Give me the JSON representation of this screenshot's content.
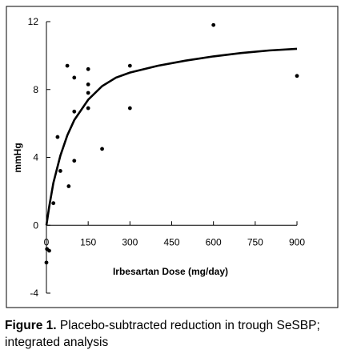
{
  "chart_data": {
    "type": "scatter",
    "xlabel": "Irbesartan Dose (mg/day)",
    "ylabel": "mmHg",
    "xlim": [
      0,
      900
    ],
    "ylim": [
      -4,
      12
    ],
    "x_ticks": [
      0,
      150,
      300,
      450,
      600,
      750,
      900
    ],
    "y_ticks": [
      -4,
      0,
      4,
      8,
      12
    ],
    "x_tick_labels": [
      "0",
      "150",
      "300",
      "450",
      "600",
      "750",
      "900"
    ],
    "y_tick_labels": [
      "-4",
      "0",
      "4",
      "8",
      "12"
    ],
    "grid": false,
    "points": [
      {
        "x": 0,
        "y": -2.2
      },
      {
        "x": 2,
        "y": -1.4
      },
      {
        "x": 10,
        "y": -1.5
      },
      {
        "x": 25,
        "y": 1.3
      },
      {
        "x": 40,
        "y": 5.2
      },
      {
        "x": 50,
        "y": 3.2
      },
      {
        "x": 75,
        "y": 9.4
      },
      {
        "x": 80,
        "y": 2.3
      },
      {
        "x": 100,
        "y": 8.7
      },
      {
        "x": 100,
        "y": 6.7
      },
      {
        "x": 100,
        "y": 3.8
      },
      {
        "x": 150,
        "y": 9.2
      },
      {
        "x": 150,
        "y": 8.3
      },
      {
        "x": 150,
        "y": 7.8
      },
      {
        "x": 150,
        "y": 6.9
      },
      {
        "x": 200,
        "y": 4.5
      },
      {
        "x": 300,
        "y": 9.4
      },
      {
        "x": 300,
        "y": 6.9
      },
      {
        "x": 600,
        "y": 11.8
      },
      {
        "x": 900,
        "y": 8.8
      }
    ],
    "fit_curve": [
      {
        "x": 0,
        "y": 0
      },
      {
        "x": 10,
        "y": 1.1
      },
      {
        "x": 25,
        "y": 2.5
      },
      {
        "x": 50,
        "y": 4.1
      },
      {
        "x": 75,
        "y": 5.3
      },
      {
        "x": 100,
        "y": 6.2
      },
      {
        "x": 150,
        "y": 7.4
      },
      {
        "x": 200,
        "y": 8.2
      },
      {
        "x": 250,
        "y": 8.7
      },
      {
        "x": 300,
        "y": 9.0
      },
      {
        "x": 400,
        "y": 9.4
      },
      {
        "x": 500,
        "y": 9.7
      },
      {
        "x": 600,
        "y": 9.95
      },
      {
        "x": 700,
        "y": 10.15
      },
      {
        "x": 800,
        "y": 10.3
      },
      {
        "x": 900,
        "y": 10.4
      }
    ]
  },
  "caption": {
    "label": "Figure 1.",
    "text": "Placebo-subtracted reduction in trough SeSBP; integrated analysis"
  }
}
